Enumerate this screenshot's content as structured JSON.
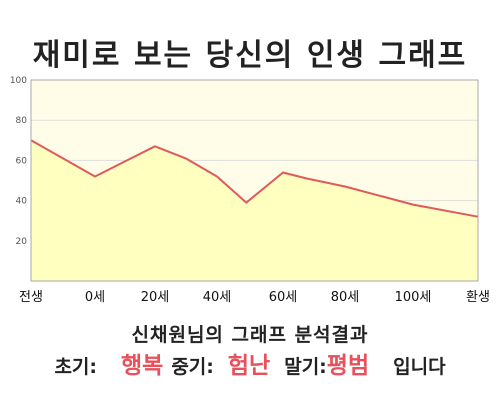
{
  "title": "재미로 보는 당신의 인생 그래프",
  "analysis": {
    "subtitle": "신채원님의 그래프 분석결과",
    "early_label": "초기:",
    "early_value": "행복",
    "middle_label": "중기:",
    "middle_value": "험난",
    "late_label": "말기:",
    "late_value": "평범",
    "suffix": "입니다",
    "highlight_color": "#e8505b"
  },
  "chart_data": {
    "type": "area",
    "x_categories": [
      "전생",
      "0세",
      "20세",
      "40세",
      "60세",
      "80세",
      "100세",
      "환생"
    ],
    "points": [
      {
        "x": "전생",
        "y": 70
      },
      {
        "x": "0세",
        "y": 52
      },
      {
        "x": "20세",
        "y": 67
      },
      {
        "x": "30세",
        "y": 61
      },
      {
        "x": "40세",
        "y": 52
      },
      {
        "x": "50세",
        "y": 39
      },
      {
        "x": "60세",
        "y": 54
      },
      {
        "x": "70세",
        "y": 51
      },
      {
        "x": "80세",
        "y": 47
      },
      {
        "x": "100세",
        "y": 38
      },
      {
        "x": "환생",
        "y": 32
      }
    ],
    "y_ticks": [
      20,
      40,
      60,
      80,
      100
    ],
    "ylim": [
      0,
      100
    ],
    "grid": "horizontal",
    "line_color": "#e05a5a",
    "fill_color": "#ffffc0",
    "plot_background": "#fffde8"
  }
}
